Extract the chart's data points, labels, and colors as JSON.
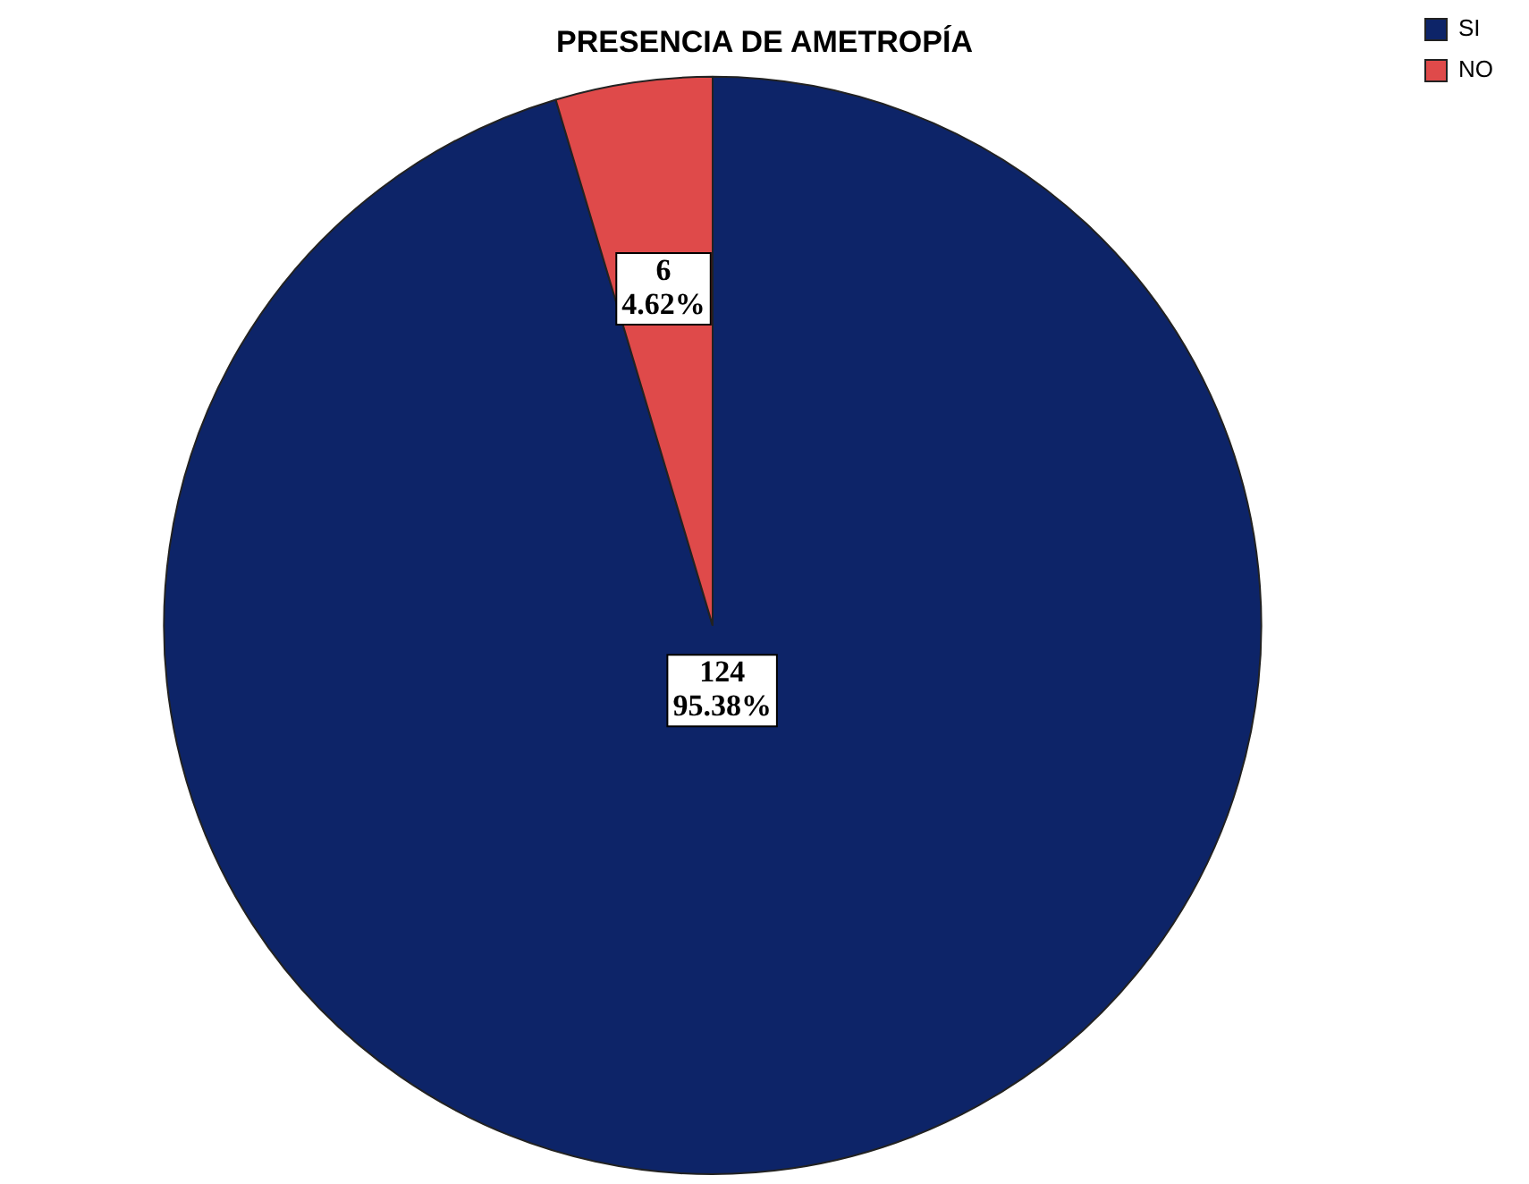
{
  "chart_data": {
    "type": "pie",
    "title": "PRESENCIA DE AMETROPÍA",
    "categories": [
      "SI",
      "NO"
    ],
    "values": [
      124,
      6
    ],
    "colors": [
      "#0d2468",
      "#df4a4a"
    ],
    "value_labels": [
      "124\n95.38%",
      "6\n4.62%"
    ],
    "legend": "top right"
  }
}
